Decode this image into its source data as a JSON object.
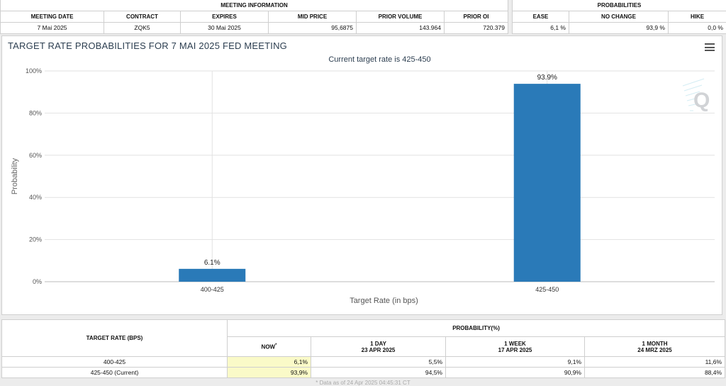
{
  "meeting": {
    "group_header": "MEETING INFORMATION",
    "columns": [
      "MEETING DATE",
      "CONTRACT",
      "EXPIRES",
      "MID PRICE",
      "PRIOR VOLUME",
      "PRIOR OI"
    ],
    "values": [
      "7 Mai 2025",
      "ZQK5",
      "30 Mai 2025",
      "95,6875",
      "143.964",
      "720.379"
    ]
  },
  "probabilities": {
    "group_header": "PROBABILITIES",
    "columns": [
      "EASE",
      "NO CHANGE",
      "HIKE"
    ],
    "values": [
      "6,1 %",
      "93,9 %",
      "0,0 %"
    ]
  },
  "chart": {
    "title": "TARGET RATE PROBABILITIES FOR 7 MAI 2025 FED MEETING",
    "menu_icon": "hamburger-menu-icon",
    "bar_color": "#2a7ab8"
  },
  "chart_data": {
    "type": "bar",
    "title": "TARGET RATE PROBABILITIES FOR 7 MAI 2025 FED MEETING",
    "subtitle": "Current target rate is 425-450",
    "categories": [
      "400-425",
      "425-450"
    ],
    "values": [
      6.1,
      93.9
    ],
    "data_labels": [
      "6.1%",
      "93.9%"
    ],
    "xlabel": "Target Rate (in bps)",
    "ylabel": "Probability",
    "ylim": [
      0,
      100
    ],
    "yticks": [
      "0%",
      "20%",
      "40%",
      "60%",
      "80%",
      "100%"
    ],
    "ytick_values": [
      0,
      20,
      40,
      60,
      80,
      100
    ],
    "grid": true
  },
  "rate_table": {
    "header_rate": "TARGET RATE (BPS)",
    "header_prob": "PROBABILITY(%)",
    "sub_headers": [
      {
        "label": "NOW",
        "sup": "*",
        "date": ""
      },
      {
        "label": "1 DAY",
        "date": "23 APR 2025"
      },
      {
        "label": "1 WEEK",
        "date": "17 APR 2025"
      },
      {
        "label": "1 MONTH",
        "date": "24 MRZ 2025"
      }
    ],
    "rows": [
      {
        "rate": "400-425",
        "now": "6,1%",
        "day": "5,5%",
        "week": "9,1%",
        "month": "11,6%"
      },
      {
        "rate": "425-450 (Current)",
        "now": "93,9%",
        "day": "94,5%",
        "week": "90,9%",
        "month": "88,4%"
      }
    ],
    "footnote": "* Data as of 24 Apr 2025 04:45:31 CT"
  }
}
